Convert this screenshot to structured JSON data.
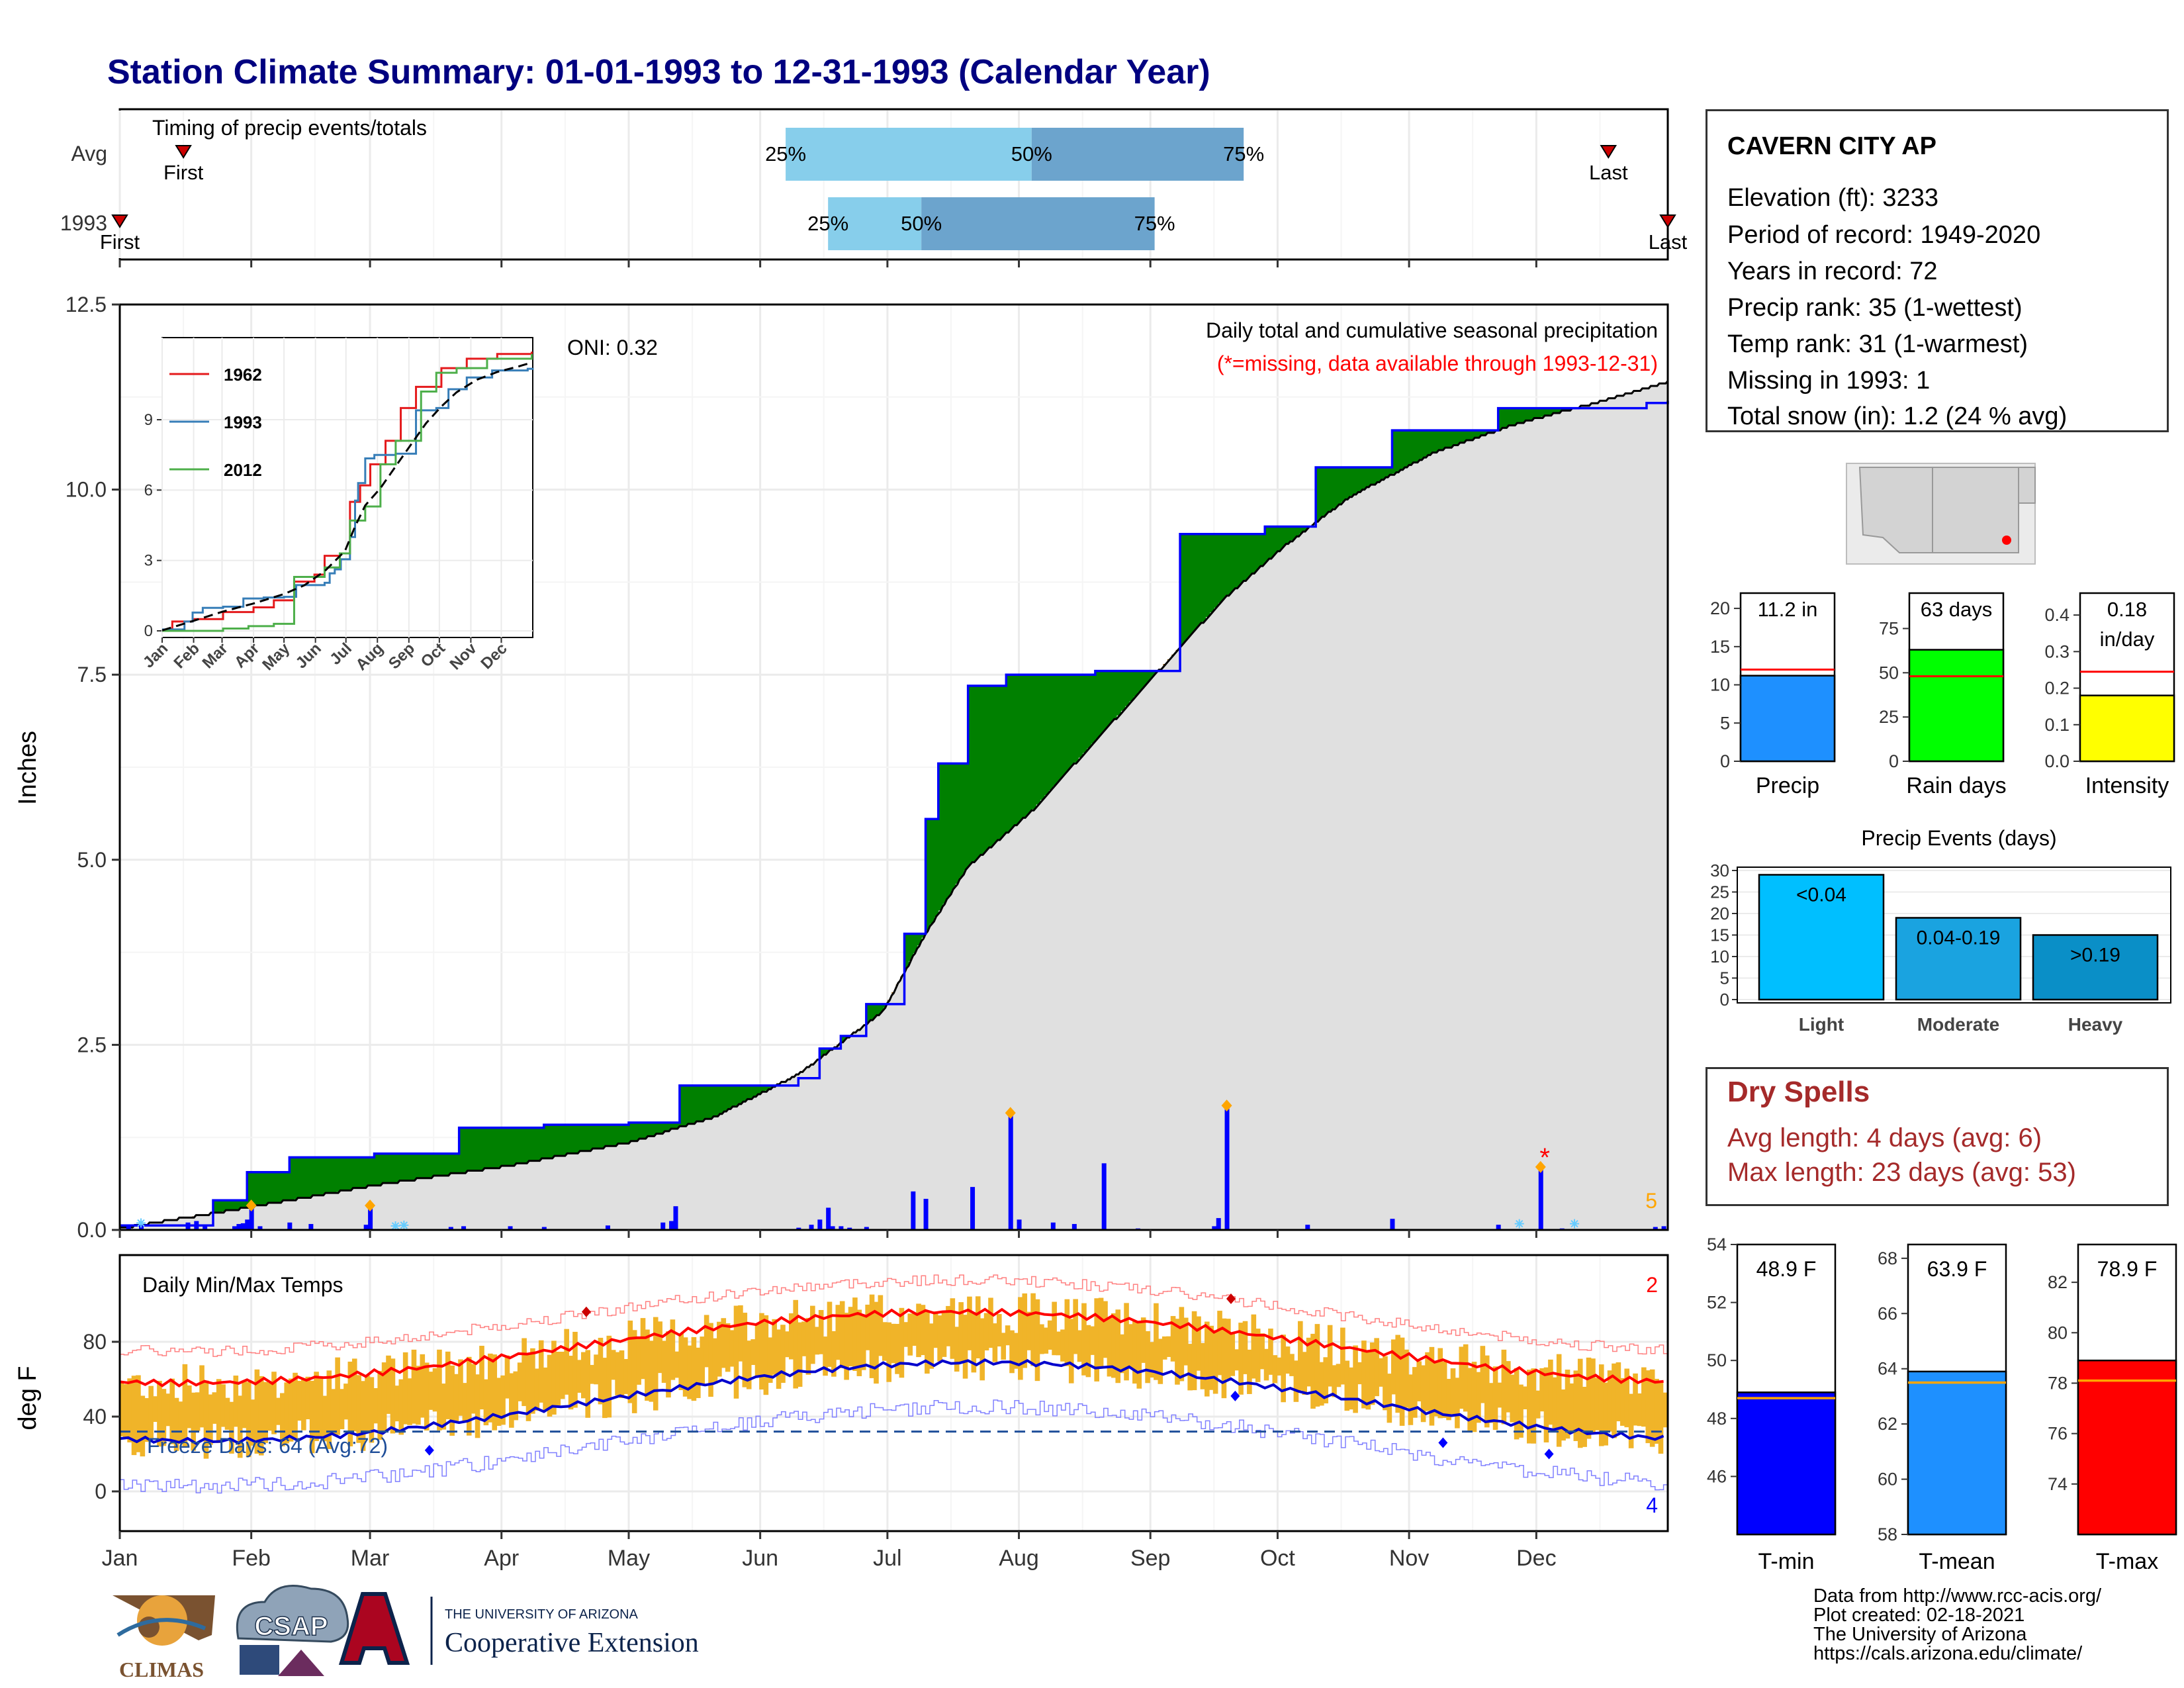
{
  "title": "Station Climate Summary: 01-01-1993 to 12-31-1993 (Calendar Year)",
  "colors": {
    "wet": "#008000",
    "dry": "#8B5A13",
    "cum": "#0000FF",
    "avg": "#E0E0E0",
    "tempbar": "#F0B429",
    "tmax": "#FF0000",
    "tmin": "#0000CC"
  },
  "months": [
    "Jan",
    "Feb",
    "Mar",
    "Apr",
    "May",
    "Jun",
    "Jul",
    "Aug",
    "Sep",
    "Oct",
    "Nov",
    "Dec"
  ],
  "timing": {
    "label": "Timing of precip events/totals",
    "rows": [
      "Avg",
      "1993"
    ],
    "avg": {
      "first_label": "First",
      "last_label": "Last",
      "p25": "25%",
      "p50": "50%",
      "p75": "75%",
      "first": 15,
      "last": 351,
      "q25": 157,
      "q50": 215,
      "q75": 265
    },
    "year": {
      "first_label": "First",
      "last_label": "Last",
      "p25": "25%",
      "p50": "50%",
      "p75": "75%",
      "first": 0,
      "last": 365,
      "q25": 167,
      "q50": 189,
      "q75": 244
    }
  },
  "precip_panel": {
    "ylabel": "Inches",
    "yticks": [
      "0.0",
      "2.5",
      "5.0",
      "7.5",
      "10.0",
      "12.5"
    ],
    "oni": "ONI: 0.32",
    "note1": "Daily total and cumulative seasonal precipitation",
    "note2": "(*=missing, data available through 1993-12-31)",
    "corner_count": "5",
    "missing_marker": "*"
  },
  "inset": {
    "yticks": [
      "0",
      "3",
      "6",
      "9"
    ],
    "months": [
      "Jan",
      "Feb",
      "Mar",
      "Apr",
      "May",
      "Jun",
      "Jul",
      "Aug",
      "Sep",
      "Oct",
      "Nov",
      "Dec"
    ],
    "legend": [
      {
        "name": "1962",
        "color": "#E41A1C"
      },
      {
        "name": "1993",
        "color": "#377EB8"
      },
      {
        "name": "2012",
        "color": "#4DAF4A"
      }
    ]
  },
  "temp_panel": {
    "ylabel": "deg F",
    "label": "Daily Min/Max Temps",
    "yticks": [
      "0",
      "40",
      "80"
    ],
    "freeze": "Freeze Days: 64 (Avg:72)",
    "count_top": "2",
    "count_bottom": "4"
  },
  "station": {
    "name": "CAVERN CITY AP",
    "lines": [
      "Elevation (ft): 3233",
      "Period of record: 1949-2020",
      "Years in record: 72",
      "Precip rank: 35 (1-wettest)",
      "Temp rank: 31 (1-warmest)",
      "Missing in 1993: 1",
      "Total snow (in): 1.2 (24 % avg)"
    ]
  },
  "mini_bars": [
    {
      "label": "Precip",
      "value_text": "11.2 in",
      "value": 11.2,
      "avg": 12,
      "max": 22,
      "ticks": [
        "0",
        "5",
        "10",
        "15",
        "20"
      ],
      "tickvals": [
        0,
        5,
        10,
        15,
        20
      ],
      "color": "#1E90FF"
    },
    {
      "label": "Rain days",
      "value_text": "63 days",
      "value": 63,
      "avg": 48,
      "max": 95,
      "ticks": [
        "0",
        "25",
        "50",
        "75"
      ],
      "tickvals": [
        0,
        25,
        50,
        75
      ],
      "color": "#00FF00"
    },
    {
      "label": "Intensity",
      "value_text": "0.18",
      "value_text2": "in/day",
      "value": 0.18,
      "avg": 0.245,
      "max": 0.46,
      "ticks": [
        "0.0",
        "0.1",
        "0.2",
        "0.3",
        "0.4"
      ],
      "tickvals": [
        0,
        0.1,
        0.2,
        0.3,
        0.4
      ],
      "color": "#FFFF00"
    }
  ],
  "events": {
    "title": "Precip Events (days)",
    "yticks": [
      "0",
      "5",
      "10",
      "15",
      "20",
      "25",
      "30"
    ],
    "bars": [
      {
        "cat": "Light",
        "label": "<0.04",
        "value": 29,
        "color": "#00BFFF"
      },
      {
        "cat": "Moderate",
        "label": "0.04-0.19",
        "value": 19,
        "color": "#1AA3E0"
      },
      {
        "cat": "Heavy",
        "label": ">0.19",
        "value": 15,
        "color": "#0A8FC7"
      }
    ]
  },
  "dry_spells": {
    "title": "Dry Spells",
    "avg_line": "Avg length: 4 days (avg: 6)",
    "max_line": "Max length: 23 days (avg: 53)"
  },
  "temp_bars": [
    {
      "label": "T-min",
      "value_text": "48.9 F",
      "value": 48.9,
      "avg": 48.7,
      "min": 44,
      "max": 54,
      "ticks": [
        "46",
        "48",
        "50",
        "52",
        "54"
      ],
      "tickvals": [
        46,
        48,
        50,
        52,
        54
      ],
      "color": "#0000FF"
    },
    {
      "label": "T-mean",
      "value_text": "63.9 F",
      "value": 63.9,
      "avg": 63.5,
      "min": 58,
      "max": 68.5,
      "ticks": [
        "58",
        "60",
        "62",
        "64",
        "66",
        "68"
      ],
      "tickvals": [
        58,
        60,
        62,
        64,
        66,
        68
      ],
      "color": "#1E90FF"
    },
    {
      "label": "T-max",
      "value_text": "78.9 F",
      "value": 78.9,
      "avg": 78.1,
      "min": 72,
      "max": 83.5,
      "ticks": [
        "74",
        "76",
        "78",
        "80",
        "82"
      ],
      "tickvals": [
        74,
        76,
        78,
        80,
        82
      ],
      "color": "#FF0000"
    }
  ],
  "footer": {
    "lines": [
      "Data from http://www.rcc-acis.org/",
      "Plot created: 02-18-2021",
      "The University of Arizona",
      "https://cals.arizona.edu/climate/"
    ],
    "climas": "CLIMAS",
    "csap": "CSAP",
    "ua_small": "THE UNIVERSITY OF ARIZONA",
    "ua_big": "Cooperative Extension"
  },
  "chart_data": {
    "type": "area",
    "title": "Daily total and cumulative seasonal precipitation",
    "ylabel": "Inches",
    "ylim": [
      0,
      12.5
    ],
    "x_unit": "day of year",
    "cumulative_1993": [
      [
        0,
        0.06
      ],
      [
        22,
        0.4
      ],
      [
        30,
        0.78
      ],
      [
        40,
        0.98
      ],
      [
        60,
        1.03
      ],
      [
        80,
        1.38
      ],
      [
        100,
        1.42
      ],
      [
        120,
        1.45
      ],
      [
        132,
        1.95
      ],
      [
        160,
        2.05
      ],
      [
        165,
        2.45
      ],
      [
        170,
        2.62
      ],
      [
        176,
        3.05
      ],
      [
        185,
        4.0
      ],
      [
        190,
        5.55
      ],
      [
        193,
        6.3
      ],
      [
        200,
        7.35
      ],
      [
        209,
        7.5
      ],
      [
        230,
        7.55
      ],
      [
        250,
        9.4
      ],
      [
        270,
        9.5
      ],
      [
        282,
        10.3
      ],
      [
        300,
        10.8
      ],
      [
        325,
        11.1
      ],
      [
        360,
        11.17
      ],
      [
        365,
        11.2
      ]
    ],
    "average_cumulative": [
      [
        0,
        0.02
      ],
      [
        30,
        0.3
      ],
      [
        60,
        0.6
      ],
      [
        90,
        0.85
      ],
      [
        120,
        1.18
      ],
      [
        140,
        1.52
      ],
      [
        160,
        2.1
      ],
      [
        180,
        2.95
      ],
      [
        190,
        4.0
      ],
      [
        200,
        4.9
      ],
      [
        215,
        5.65
      ],
      [
        230,
        6.6
      ],
      [
        245,
        7.55
      ],
      [
        260,
        8.5
      ],
      [
        275,
        9.25
      ],
      [
        290,
        9.9
      ],
      [
        310,
        10.5
      ],
      [
        330,
        10.9
      ],
      [
        350,
        11.2
      ],
      [
        365,
        11.45
      ]
    ],
    "daily_bars": [
      [
        2,
        0.05
      ],
      [
        5,
        0.05
      ],
      [
        16,
        0.1
      ],
      [
        18,
        0.12
      ],
      [
        20,
        0.06
      ],
      [
        27,
        0.05
      ],
      [
        28,
        0.08
      ],
      [
        29,
        0.09
      ],
      [
        30,
        0.14
      ],
      [
        31,
        0.33
      ],
      [
        33,
        0.05
      ],
      [
        40,
        0.1
      ],
      [
        45,
        0.08
      ],
      [
        58,
        0.07
      ],
      [
        59,
        0.32
      ],
      [
        78,
        0.04
      ],
      [
        81,
        0.05
      ],
      [
        92,
        0.05
      ],
      [
        100,
        0.04
      ],
      [
        115,
        0.06
      ],
      [
        128,
        0.1
      ],
      [
        130,
        0.12
      ],
      [
        131,
        0.32
      ],
      [
        160,
        0.03
      ],
      [
        163,
        0.07
      ],
      [
        165,
        0.14
      ],
      [
        167,
        0.3
      ],
      [
        168,
        0.05
      ],
      [
        170,
        0.05
      ],
      [
        172,
        0.03
      ],
      [
        176,
        0.04
      ],
      [
        187,
        0.52
      ],
      [
        190,
        0.42
      ],
      [
        201,
        0.58
      ],
      [
        210,
        1.58
      ],
      [
        212,
        0.14
      ],
      [
        220,
        0.1
      ],
      [
        225,
        0.08
      ],
      [
        232,
        0.9
      ],
      [
        240,
        0.02
      ],
      [
        258,
        0.05
      ],
      [
        259,
        0.16
      ],
      [
        261,
        1.68
      ],
      [
        280,
        0.07
      ],
      [
        300,
        0.15
      ],
      [
        325,
        0.07
      ],
      [
        335,
        0.85
      ],
      [
        340,
        0.02
      ],
      [
        362,
        0.04
      ],
      [
        364,
        0.05
      ]
    ],
    "markers": [
      [
        31,
        0.33
      ],
      [
        59,
        0.33
      ],
      [
        210,
        1.58
      ],
      [
        261,
        1.68
      ],
      [
        335,
        0.85
      ]
    ],
    "missing": [
      [
        336,
        1.0
      ]
    ]
  }
}
